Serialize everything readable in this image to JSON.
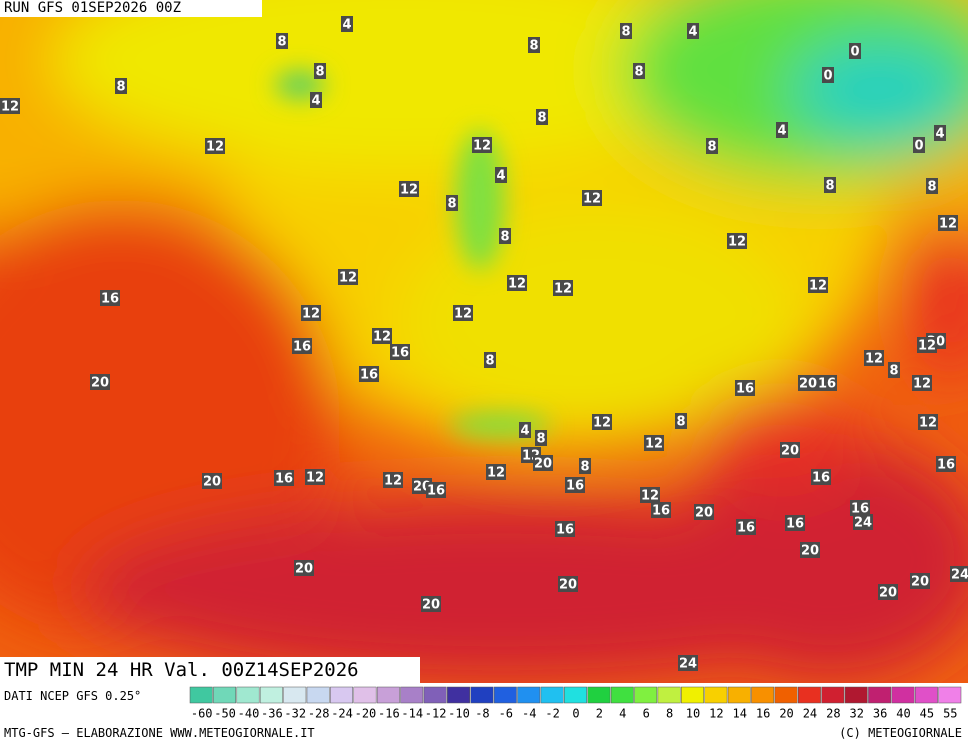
{
  "header": {
    "run": "RUN GFS 01SEP2026 00Z"
  },
  "map": {
    "contour_labels": [
      4,
      8,
      8,
      4,
      8,
      12,
      12,
      12,
      8,
      8,
      4,
      8,
      8,
      12,
      4,
      8,
      12,
      8,
      8,
      4,
      0,
      0,
      0,
      4,
      8,
      8,
      12,
      12,
      12,
      12,
      12,
      12,
      16,
      12,
      12,
      12,
      16,
      16,
      8,
      20,
      12,
      12,
      8,
      12,
      20,
      16,
      16,
      20,
      16,
      12,
      12,
      8,
      4,
      8,
      12,
      20,
      12,
      20,
      12,
      8,
      16,
      20,
      16,
      12,
      12,
      20,
      16,
      16,
      16,
      12,
      16,
      20,
      16,
      24,
      16,
      16,
      16,
      20,
      20,
      20,
      20,
      24,
      20,
      20,
      24
    ]
  },
  "footer": {
    "title": "TMP MIN 24 HR Val. 00Z14SEP2026",
    "source": "DATI NCEP GFS 0.25°",
    "credit": "MTG-GFS — ELABORAZIONE WWW.METEOGIORNALE.IT",
    "copyright": "(C) METEOGIORNALE"
  },
  "legend": {
    "labels": [
      -60,
      -50,
      -40,
      -36,
      -32,
      -28,
      -24,
      -20,
      -16,
      -14,
      -12,
      -10,
      -8,
      -6,
      -4,
      -2,
      0,
      2,
      4,
      6,
      8,
      10,
      12,
      14,
      16,
      20,
      24,
      28,
      32,
      36,
      40,
      45,
      55
    ],
    "colors": [
      "#40c8a0",
      "#70d8b8",
      "#a0e8d0",
      "#c0f0e0",
      "#d8e8f0",
      "#c8d8f0",
      "#d8c8f0",
      "#e0c0e8",
      "#c8a0d8",
      "#a880c8",
      "#8060b8",
      "#4030a0",
      "#2040c0",
      "#2060e0",
      "#2090f0",
      "#20c0f0",
      "#20e0e0",
      "#20d040",
      "#40e040",
      "#80f040",
      "#c0f040",
      "#f0f000",
      "#f8d000",
      "#f8b000",
      "#f89000",
      "#f06000",
      "#e83020",
      "#d02030",
      "#b01830",
      "#c02070",
      "#d030a0",
      "#e050c8",
      "#f080e8"
    ]
  }
}
